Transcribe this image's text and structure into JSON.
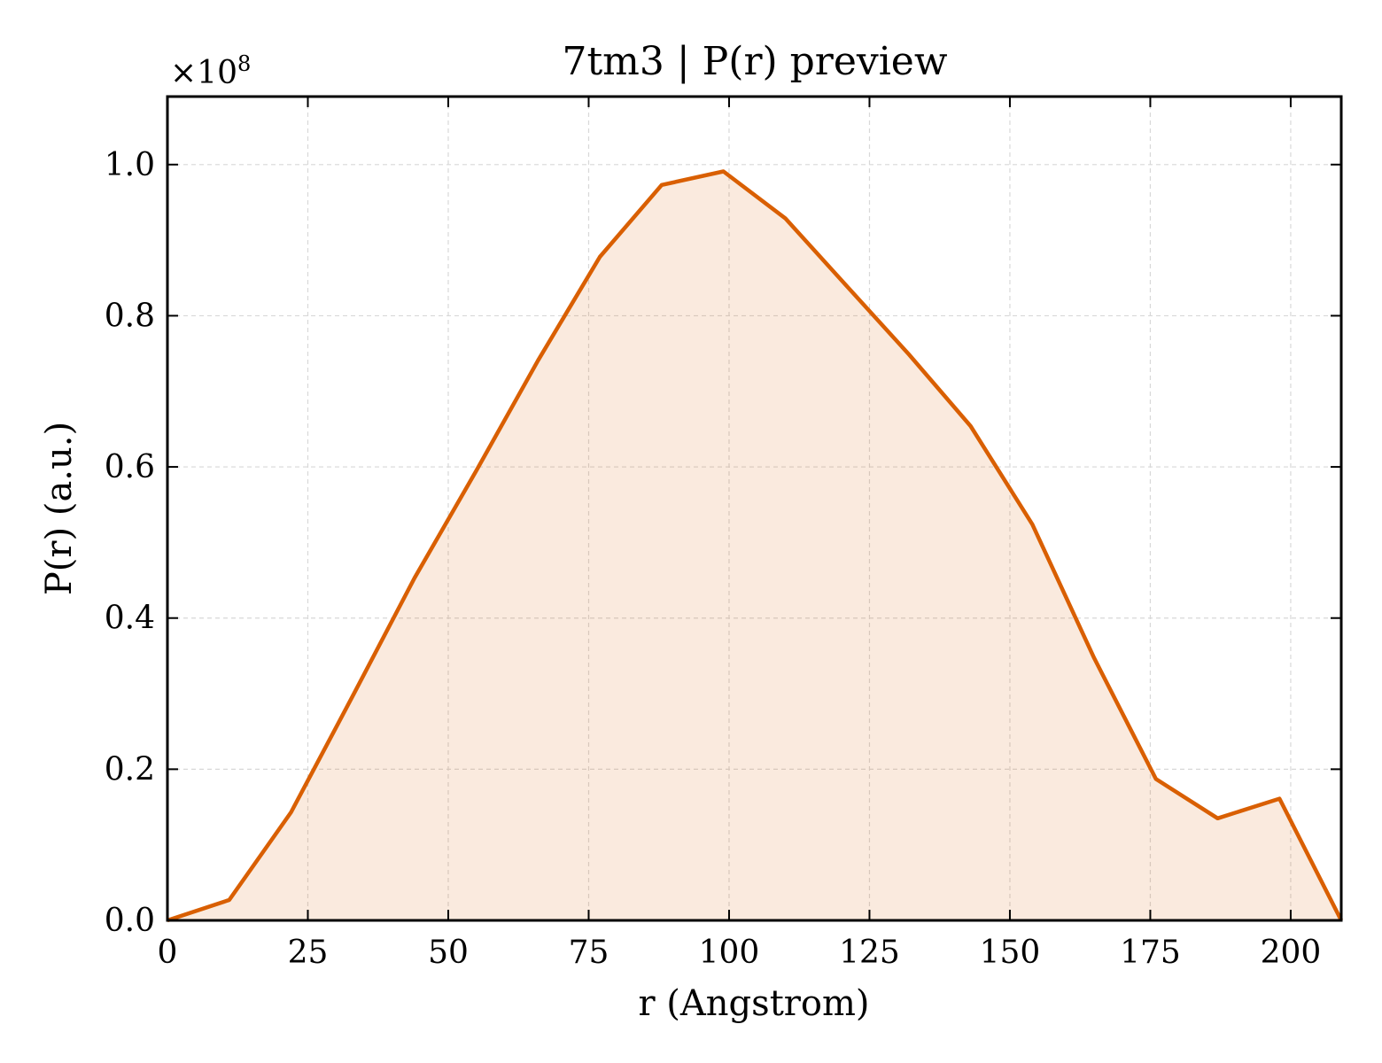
{
  "chart_data": {
    "type": "area",
    "title": "7tm3 | P(r) preview",
    "xlabel": "r (Angstrom)",
    "ylabel": "P(r) (a.u.)",
    "y_multiplier": "×10",
    "y_multiplier_exp": "8",
    "xlim": [
      0,
      209
    ],
    "ylim": [
      0,
      1.09
    ],
    "xticks": [
      0,
      25,
      50,
      75,
      100,
      125,
      150,
      175,
      200
    ],
    "yticks": [
      0.0,
      0.2,
      0.4,
      0.6,
      0.8,
      1.0
    ],
    "grid": true,
    "series": [
      {
        "color": "#d95f02",
        "fill_color": "#d95f02",
        "fill_opacity": 0.13,
        "x": [
          0,
          11,
          22,
          33,
          44,
          55,
          66,
          77,
          88,
          99,
          110,
          121,
          132,
          143,
          154,
          165,
          176,
          187,
          198,
          209
        ],
        "y": [
          0.0,
          0.027,
          0.143,
          0.297,
          0.453,
          0.595,
          0.741,
          0.878,
          0.973,
          0.991,
          0.929,
          0.839,
          0.749,
          0.654,
          0.524,
          0.347,
          0.187,
          0.135,
          0.161,
          0.0
        ]
      }
    ]
  }
}
